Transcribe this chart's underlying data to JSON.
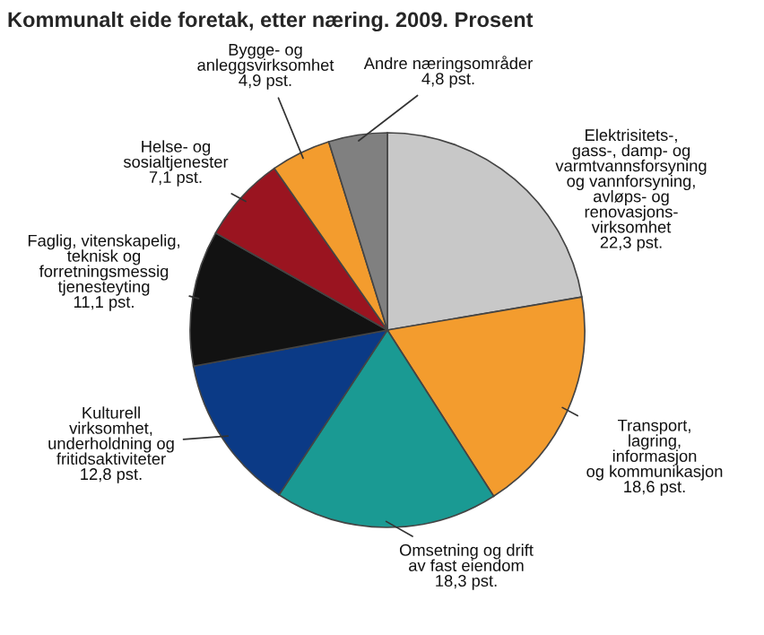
{
  "chart_data": {
    "type": "pie",
    "title": "Kommunalt eide foretak, etter næring. 2009. Prosent",
    "categories": [
      "Elektrisitets-,\ngass-, damp- og\nvarmtvannsforsyning\nog vannforsyning,\navløps- og\nrenovasjons-\nvirksomhet",
      "Transport,\nlagring,\ninformasjon\nog kommunikasjon",
      "Omsetning og drift\nav fast eiendom",
      "Kulturell\nvirksomhet,\nunderholdning og\nfritidsaktiviteter",
      "Faglig, vitenskapelig,\nteknisk og\nforretningsmessig\ntjenesteyting",
      "Helse- og\nsosialtjenester",
      "Bygge- og\nanleggsvirksomhet",
      "Andre næringsområder"
    ],
    "values": [
      22.3,
      18.6,
      18.3,
      12.8,
      11.1,
      7.1,
      4.9,
      4.8
    ],
    "colors": [
      "#c8c8c8",
      "#f39c2e",
      "#1a9a93",
      "#0b3a86",
      "#121212",
      "#9a1420",
      "#f39c2e",
      "#808080"
    ],
    "value_labels": [
      "22,3 pst.",
      "18,6 pst.",
      "18,3 pst.",
      "12,8 pst.",
      "11,1 pst.",
      "7,1 pst.",
      "4,9 pst.",
      "4,8 pst."
    ]
  }
}
